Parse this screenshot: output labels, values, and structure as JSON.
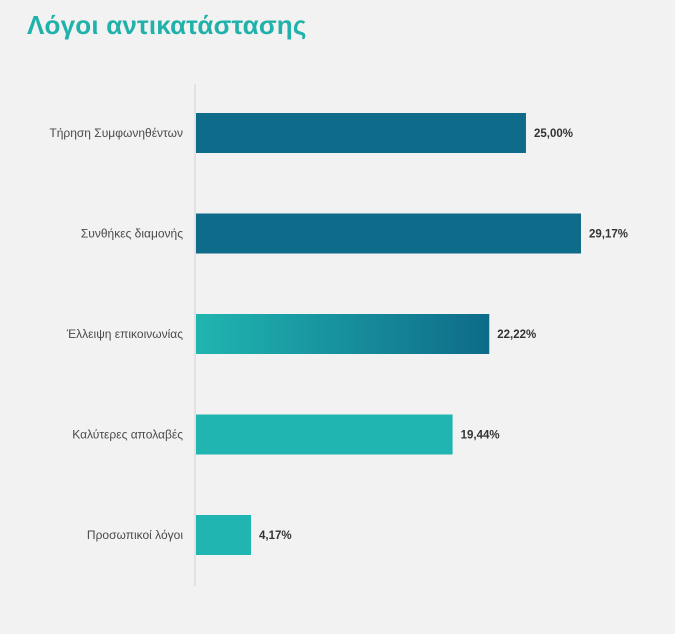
{
  "chart_data": {
    "type": "bar",
    "orientation": "horizontal",
    "title": "Λόγοι αντικατάστασης",
    "categories": [
      "Τήρηση Συμφωνηθέντων",
      "Συνθήκες διαμονής",
      "Έλλειψη επικοινωνίας",
      "Καλύτερες απολαβές",
      "Προσωπικοί λόγοι"
    ],
    "values": [
      25.0,
      29.17,
      22.22,
      19.44,
      4.17
    ],
    "value_labels": [
      "25,00%",
      "29,17%",
      "22,22%",
      "19,44%",
      "4,17%"
    ],
    "xlim": [
      0,
      30
    ],
    "unit": "%",
    "grid": false,
    "bar_colors": [
      "#0e6b8a",
      "#0e6b8a",
      "gradient",
      "#20b5b0",
      "#20b5b0"
    ],
    "gradient_colors": [
      "#20b5b0",
      "#0e6b8a"
    ]
  }
}
